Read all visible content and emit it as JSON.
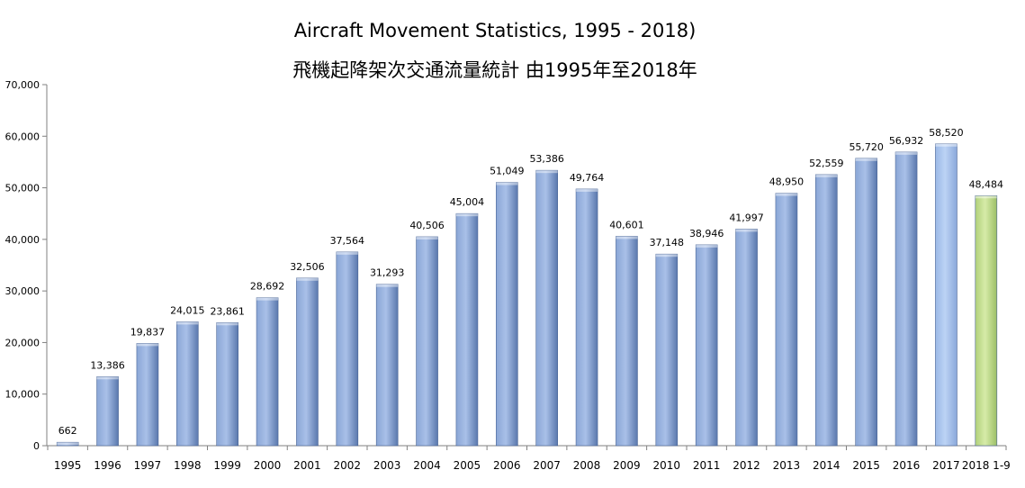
{
  "chart_data": {
    "type": "bar",
    "title": "Aircraft Movement Statistics, 1995 -  2018)",
    "subtitle": "飛機起降架次交通流量統計 由1995年至2018年",
    "xlabel": "",
    "ylabel": "",
    "ylim": [
      0,
      70000
    ],
    "yticks": [
      "0",
      "10,000",
      "20,000",
      "30,000",
      "40,000",
      "50,000",
      "60,000",
      "70,000"
    ],
    "grid": false,
    "legend": "none",
    "categories": [
      "1995",
      "1996",
      "1997",
      "1998",
      "1999",
      "2000",
      "2001",
      "2002",
      "2003",
      "2004",
      "2005",
      "2006",
      "2007",
      "2008",
      "2009",
      "2010",
      "2011",
      "2012",
      "2013",
      "2014",
      "2015",
      "2016",
      "2017",
      "2018 1-9"
    ],
    "values": [
      662,
      13386,
      19837,
      24015,
      23861,
      28692,
      32506,
      37564,
      31293,
      40506,
      45004,
      51049,
      53386,
      49764,
      40601,
      37148,
      38946,
      41997,
      48950,
      52559,
      55720,
      56932,
      58520,
      48484
    ],
    "value_labels": [
      "662",
      "13,386",
      "19,837",
      "24,015",
      "23,861",
      "28,692",
      "32,506",
      "37,564",
      "31,293",
      "40,506",
      "45,004",
      "51,049",
      "53,386",
      "49,764",
      "40,601",
      "37,148",
      "38,946",
      "41,997",
      "48,950",
      "52,559",
      "55,720",
      "56,932",
      "58,520",
      "48,484"
    ],
    "colors": {
      "default": "#6f8fc4",
      "light": "#a9c4ee",
      "highlight": "#b9d886"
    },
    "bar_styles": [
      "default",
      "default",
      "default",
      "default",
      "default",
      "default",
      "default",
      "default",
      "default",
      "default",
      "default",
      "default",
      "default",
      "default",
      "default",
      "default",
      "default",
      "default",
      "default",
      "default",
      "default",
      "default",
      "light",
      "highlight"
    ]
  }
}
